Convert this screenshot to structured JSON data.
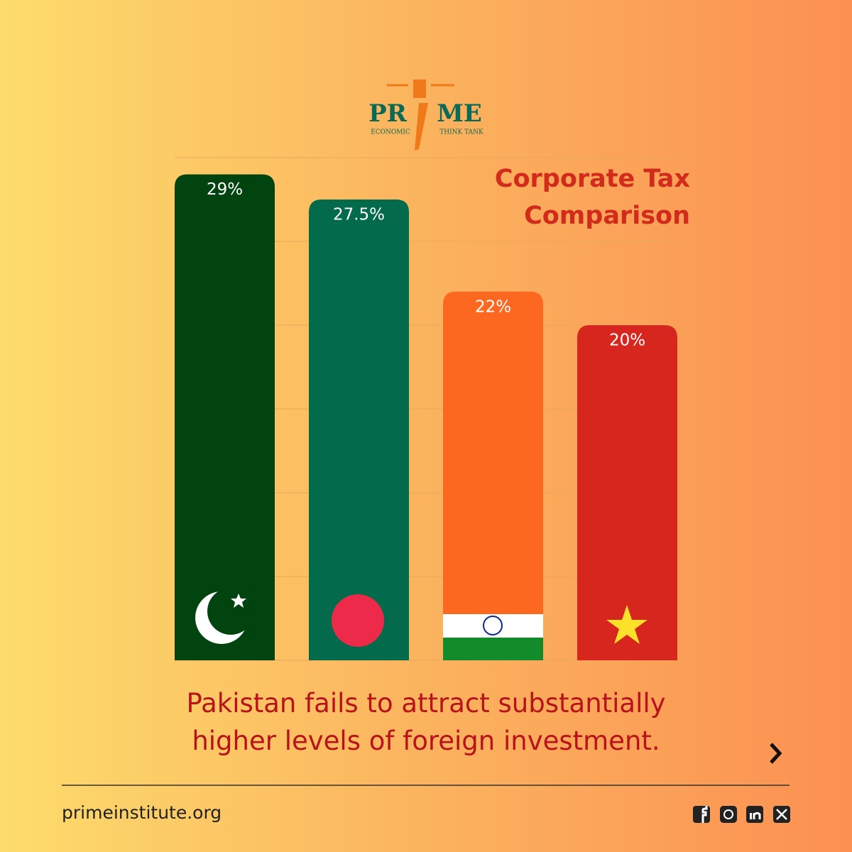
{
  "chart_data": {
    "type": "bar",
    "title": "Corporate Tax Comparison",
    "categories": [
      null,
      null,
      null,
      null
    ],
    "values": [
      29,
      27.5,
      22,
      20
    ],
    "value_labels": [
      "29%",
      "27.5%",
      "22%",
      "20%"
    ],
    "colors": [
      "#02440f",
      "#036a4c",
      "#fc6820",
      "#d7261e"
    ],
    "ylim": [
      0,
      30
    ],
    "yticks": [
      0,
      5,
      10,
      15,
      20,
      25,
      30
    ],
    "grid": true
  },
  "logo": {
    "left": "PR",
    "right": "ME",
    "sub_left": "ECONOMIC",
    "sub_right": "THINK TANK"
  },
  "caption": "Pakistan fails to attract substantially higher levels of foreign investment.",
  "footer": {
    "website": "primeinstitute.org"
  }
}
